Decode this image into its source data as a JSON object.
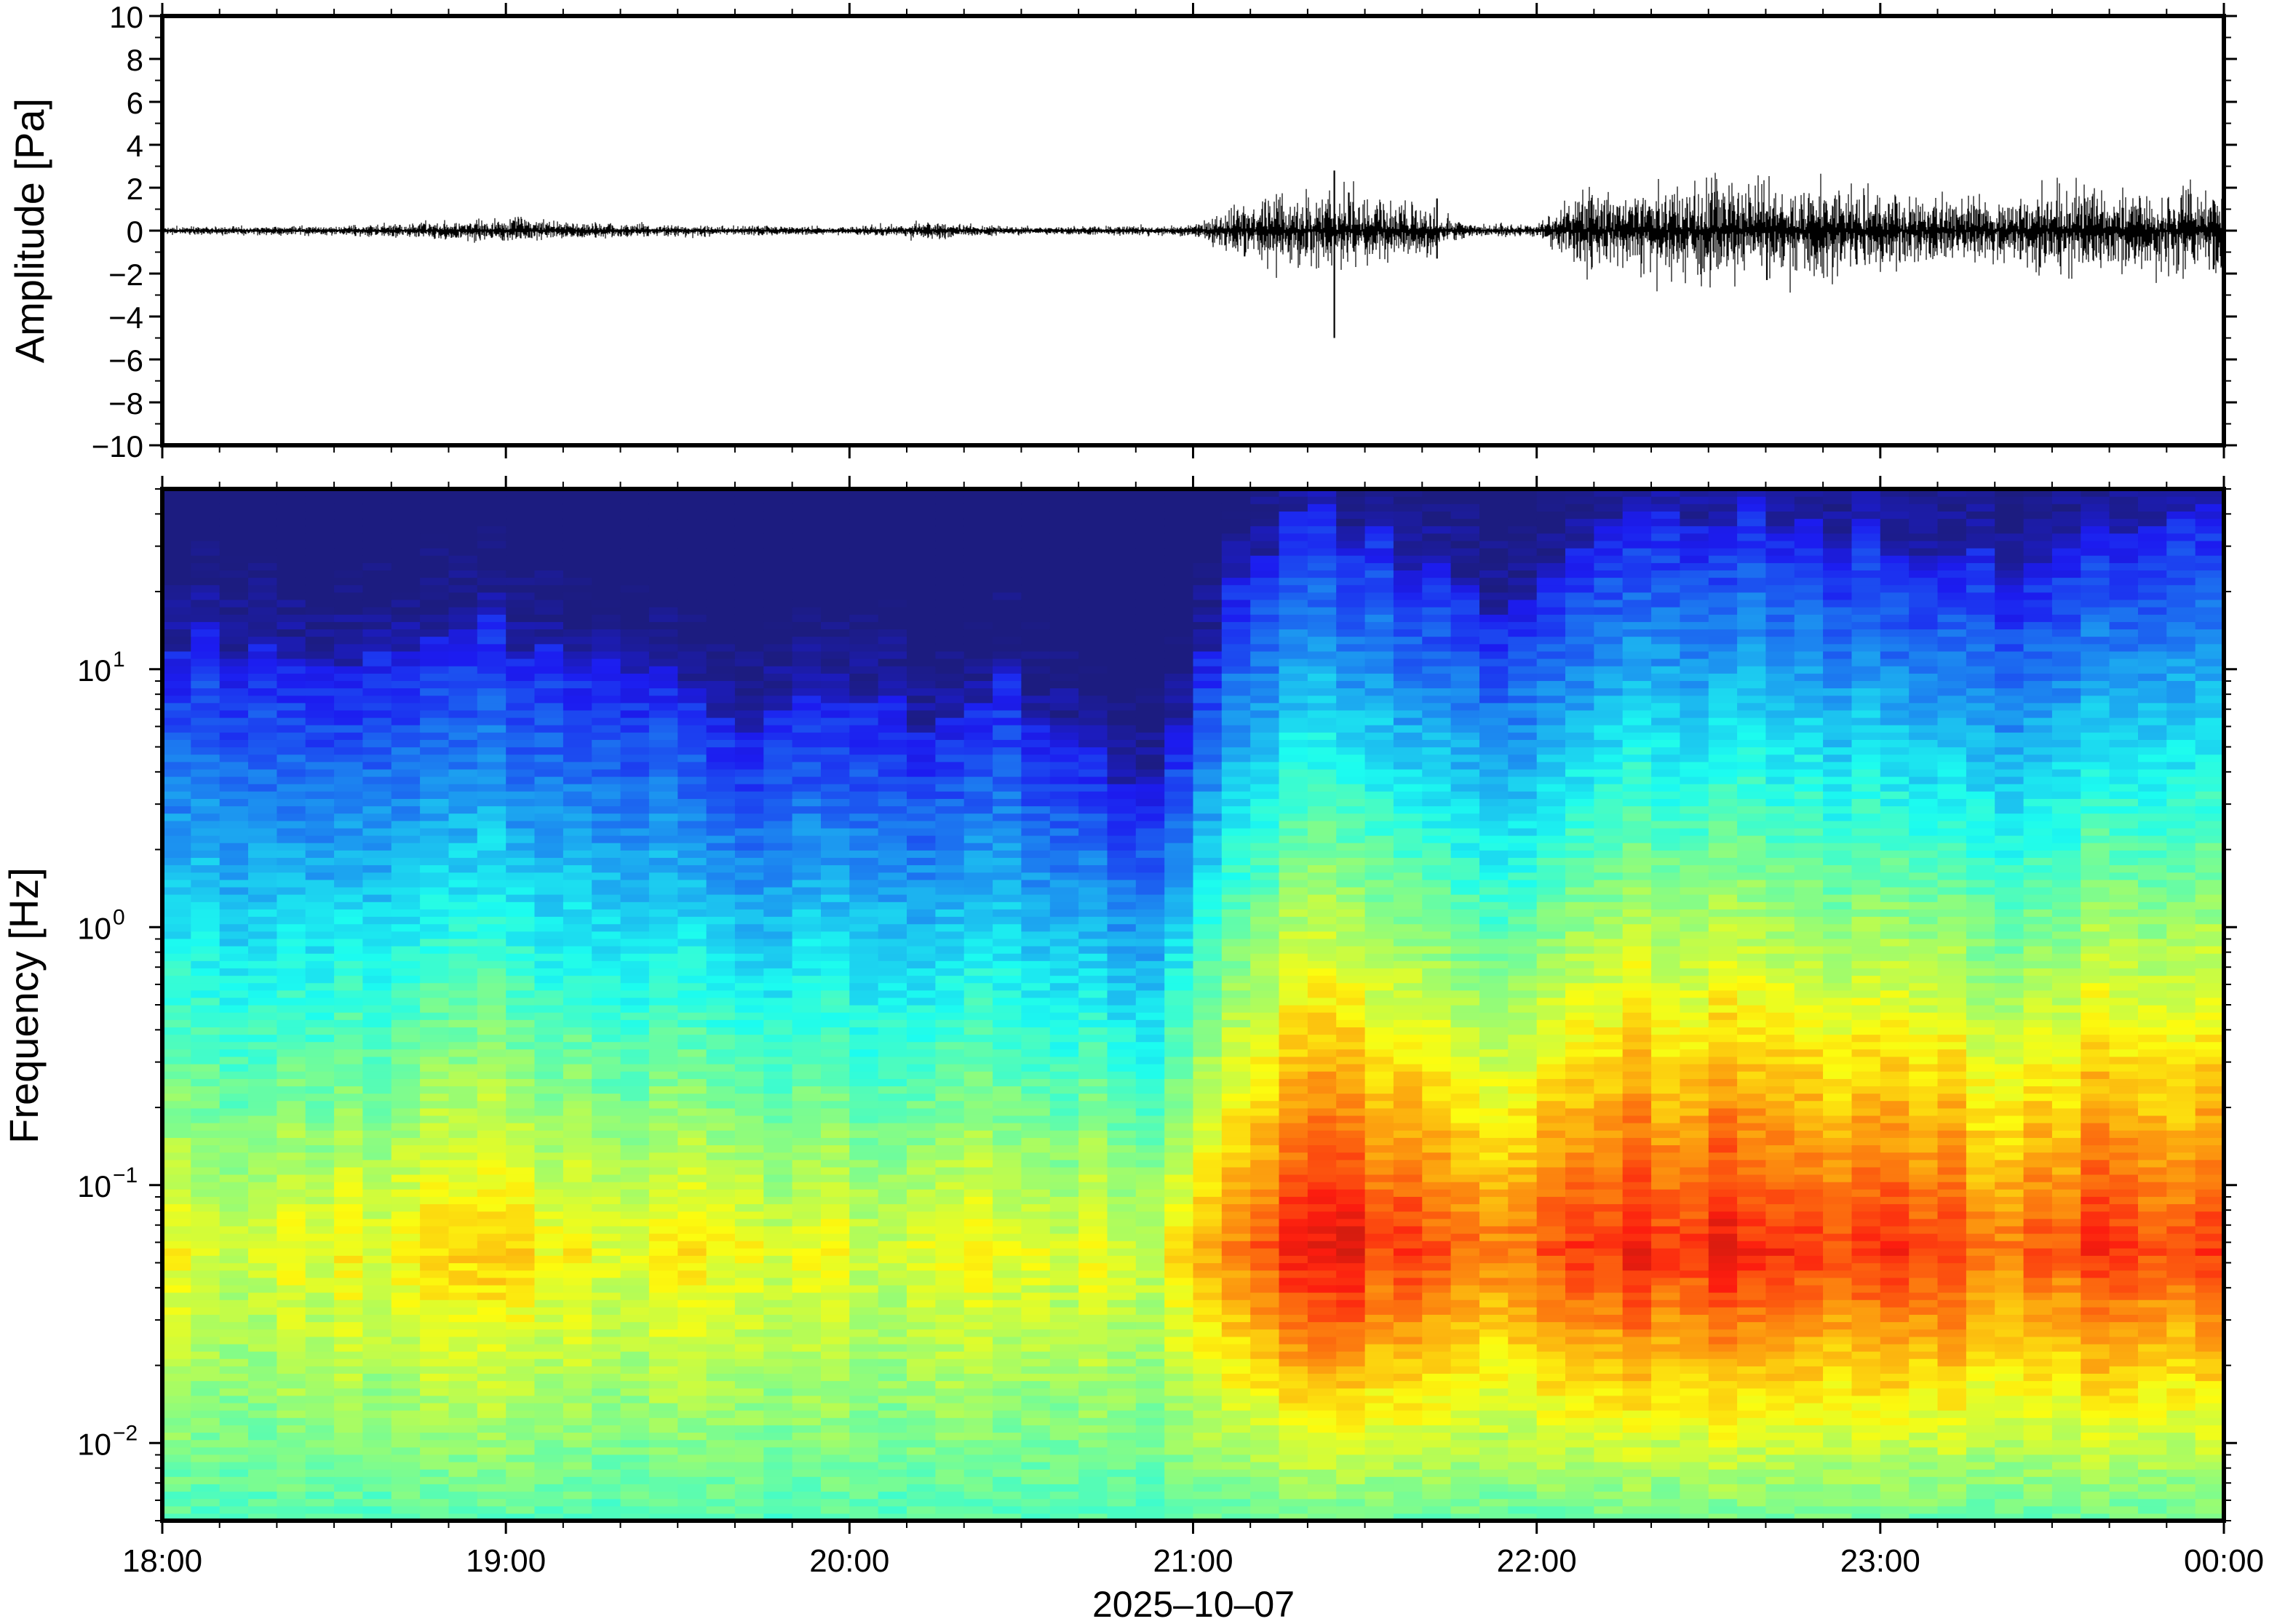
{
  "chart_data": [
    {
      "type": "line",
      "title": "",
      "xlabel": "",
      "ylabel": "Amplitude [Pa]",
      "ylim": [
        -10,
        10
      ],
      "yticks": [
        10,
        8,
        6,
        4,
        2,
        0,
        -2,
        -4,
        -6,
        -8,
        -10
      ],
      "ytick_labels": [
        "10",
        "8",
        "6",
        "4",
        "2",
        "0",
        "−2",
        "−4",
        "−6",
        "−8",
        "−10"
      ],
      "x_range_hours": [
        18,
        24
      ],
      "grid": false,
      "noise_envelope": [
        {
          "t": 18.0,
          "amp": 0.1
        },
        {
          "t": 18.5,
          "amp": 0.12
        },
        {
          "t": 19.0,
          "amp": 0.35
        },
        {
          "t": 19.5,
          "amp": 0.15
        },
        {
          "t": 20.0,
          "amp": 0.1
        },
        {
          "t": 20.25,
          "amp": 0.25
        },
        {
          "t": 20.5,
          "amp": 0.1
        },
        {
          "t": 21.0,
          "amp": 0.15
        },
        {
          "t": 21.15,
          "amp": 0.9
        },
        {
          "t": 21.4,
          "amp": 1.1
        },
        {
          "t": 21.6,
          "amp": 0.9
        },
        {
          "t": 21.8,
          "amp": 0.2
        },
        {
          "t": 22.0,
          "amp": 0.2
        },
        {
          "t": 22.15,
          "amp": 1.2
        },
        {
          "t": 22.5,
          "amp": 1.5
        },
        {
          "t": 22.8,
          "amp": 1.4
        },
        {
          "t": 23.2,
          "amp": 0.9
        },
        {
          "t": 23.5,
          "amp": 1.2
        },
        {
          "t": 24.0,
          "amp": 1.4
        }
      ],
      "spikes": [
        {
          "t": 21.411,
          "max": 2.8,
          "min": -5.0
        },
        {
          "t": 21.71,
          "max": 1.5,
          "min": -1.3
        },
        {
          "t": 21.15,
          "max": 0.7,
          "min": -1.2
        },
        {
          "t": 22.67,
          "max": 0.9,
          "min": -2.3
        },
        {
          "t": 23.97,
          "max": 1.4,
          "min": -1.8
        }
      ]
    },
    {
      "type": "heatmap",
      "title": "",
      "ylabel": "Frequency [Hz]",
      "xlabel": "2025–10–07",
      "y_scale": "log",
      "ylim_hz": [
        0.005,
        50
      ],
      "yticks": [
        0.01,
        0.1,
        1,
        10
      ],
      "xticks": [
        "18:00",
        "19:00",
        "20:00",
        "21:00",
        "22:00",
        "23:00",
        "00:00"
      ],
      "x_range_hours": [
        18,
        24
      ],
      "colormap": "jet",
      "colorbar": false,
      "relative_power_profile": [
        {
          "t": 18.0,
          "noise_top_hz": 14,
          "peak": 0.58
        },
        {
          "t": 18.5,
          "noise_top_hz": 8,
          "peak": 0.6
        },
        {
          "t": 19.0,
          "noise_top_hz": 14,
          "peak": 0.66
        },
        {
          "t": 19.5,
          "noise_top_hz": 8,
          "peak": 0.62
        },
        {
          "t": 20.0,
          "noise_top_hz": 6,
          "peak": 0.6
        },
        {
          "t": 20.5,
          "noise_top_hz": 8,
          "peak": 0.62
        },
        {
          "t": 20.9,
          "noise_top_hz": 3,
          "peak": 0.6
        },
        {
          "t": 21.0,
          "noise_top_hz": 10,
          "peak": 0.72
        },
        {
          "t": 21.15,
          "noise_top_hz": 25,
          "peak": 0.8
        },
        {
          "t": 21.4,
          "noise_top_hz": 40,
          "peak": 0.9
        },
        {
          "t": 21.6,
          "noise_top_hz": 30,
          "peak": 0.84
        },
        {
          "t": 21.9,
          "noise_top_hz": 12,
          "peak": 0.78
        },
        {
          "t": 22.1,
          "noise_top_hz": 30,
          "peak": 0.86
        },
        {
          "t": 22.5,
          "noise_top_hz": 40,
          "peak": 0.88
        },
        {
          "t": 23.0,
          "noise_top_hz": 35,
          "peak": 0.84
        },
        {
          "t": 23.4,
          "noise_top_hz": 20,
          "peak": 0.8
        },
        {
          "t": 23.6,
          "noise_top_hz": 35,
          "peak": 0.85
        },
        {
          "t": 24.0,
          "noise_top_hz": 38,
          "peak": 0.85
        }
      ]
    }
  ]
}
